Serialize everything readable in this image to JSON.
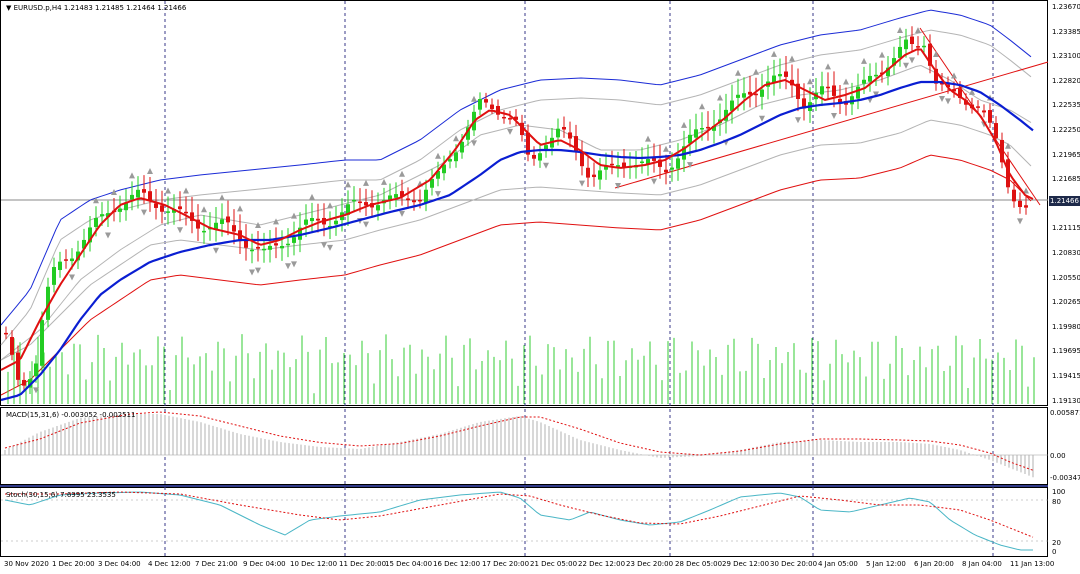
{
  "header": {
    "symbol_line": "EURUSD.p,H4  1.21483 1.21485 1.21464 1.21466",
    "current_price": "1.21466"
  },
  "price_axis": [
    "1.23670",
    "1.23385",
    "1.23100",
    "1.22820",
    "1.22535",
    "1.22250",
    "1.21965",
    "1.21685",
    "1.21400",
    "1.21115",
    "1.20830",
    "1.20550",
    "1.20265",
    "1.19980",
    "1.19695",
    "1.19415",
    "1.19130"
  ],
  "macd": {
    "label": "MACD(15,31,6) -0.003052 -0.002511",
    "axis": [
      "0.005871",
      "0.00",
      "-0.00347"
    ]
  },
  "stoch": {
    "label": "Stoch(30,15,6) 7.6995 23.3535",
    "axis": [
      "100",
      "80",
      "20",
      "0"
    ]
  },
  "time_axis": [
    "30 Nov 2020",
    "1 Dec 20:00",
    "3 Dec 04:00",
    "4 Dec 12:00",
    "7 Dec 21:00",
    "9 Dec 04:00",
    "10 Dec 12:00",
    "11 Dec 20:00",
    "15 Dec 04:00",
    "16 Dec 12:00",
    "17 Dec 20:00",
    "21 Dec 05:00",
    "22 Dec 12:00",
    "23 Dec 20:00",
    "28 Dec 05:00",
    "29 Dec 12:00",
    "30 Dec 20:00",
    "4 Jan 05:00",
    "5 Jan 12:00",
    "6 Jan 20:00",
    "8 Jan 04:00",
    "11 Jan 13:00"
  ],
  "colors": {
    "bull": "#22cc22",
    "bear": "#dd1111",
    "ma_blue": "#0a1ed2",
    "band_blue": "#1b2bd6",
    "band_red": "#e01010",
    "gray_band": "#b4b4b4",
    "macd_hist": "#b0b0b0",
    "macd_signal": "#e01010",
    "stoch_main": "#4ab6c6",
    "stoch_signal": "#e01010",
    "separator": "#303a88"
  }
}
